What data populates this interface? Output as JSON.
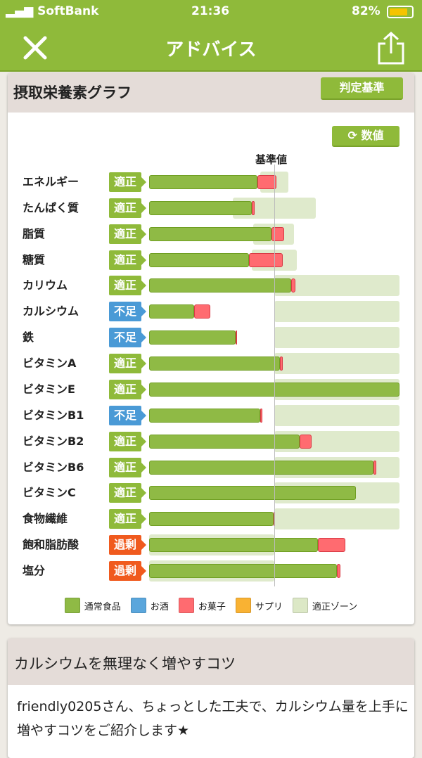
{
  "status_bar": {
    "carrier": "SoftBank",
    "time": "21:36",
    "battery": "82%"
  },
  "nav": {
    "title": "アドバイス",
    "close_icon": "close-icon",
    "share_icon": "share-icon"
  },
  "graph_card": {
    "title": "摂取栄養素グラフ",
    "judge_button": "判定基準",
    "values_button": "数値",
    "baseline_label": "基準値"
  },
  "chart_data": {
    "type": "bar",
    "orientation": "horizontal-stacked",
    "value_unit_note": "",
    "baseline": 100,
    "xlim": [
      0,
      200
    ],
    "categories": [
      "エネルギー",
      "たんぱく質",
      "脂質",
      "糖質",
      "カリウム",
      "カルシウム",
      "鉄",
      "ビタミンA",
      "ビタミンE",
      "ビタミンB1",
      "ビタミンB2",
      "ビタミンB6",
      "ビタミンC",
      "食物繊維",
      "飽和脂肪酸",
      "塩分"
    ],
    "status": [
      "適正",
      "適正",
      "適正",
      "適正",
      "適正",
      "不足",
      "不足",
      "適正",
      "適正",
      "不足",
      "適正",
      "適正",
      "適正",
      "適正",
      "過剰",
      "過剰"
    ],
    "status_colors": {
      "適正": "#8fba3a",
      "不足": "#4a9ad6",
      "過剰": "#f05a1e"
    },
    "series": [
      {
        "name": "通常食品",
        "color": "#8fba45",
        "values": [
          86.5,
          82,
          98,
          80,
          113.5,
          36,
          69,
          104.5,
          200,
          89,
          120,
          179,
          165,
          99.5,
          135,
          150
        ]
      },
      {
        "name": "お菓子",
        "color": "#ff6b70",
        "values": [
          15.2,
          2,
          10,
          27,
          3.5,
          13,
          1,
          2.5,
          0,
          1.5,
          10,
          2.5,
          0,
          0.5,
          22,
          3
        ]
      }
    ],
    "ideal_zone": {
      "name": "適正ゾーン",
      "color": "#dce8c6",
      "ranges": [
        [
          89,
          111
        ],
        [
          67,
          133
        ],
        [
          83,
          116
        ],
        [
          82,
          118
        ],
        [
          100,
          200
        ],
        [
          100,
          200
        ],
        [
          100,
          200
        ],
        [
          100,
          200
        ],
        [
          100,
          200
        ],
        [
          100,
          200
        ],
        [
          100,
          200
        ],
        [
          100,
          200
        ],
        [
          100,
          200
        ],
        [
          100,
          200
        ],
        [
          0,
          100
        ],
        [
          0,
          100
        ]
      ]
    },
    "legend": [
      {
        "label": "通常食品",
        "color": "#8fba45"
      },
      {
        "label": "お酒",
        "color": "#5aa6dc"
      },
      {
        "label": "お菓子",
        "color": "#ff6b70"
      },
      {
        "label": "サプリ",
        "color": "#f9b233"
      },
      {
        "label": "適正ゾーン",
        "color": "#dce8c6"
      }
    ]
  },
  "tip_card": {
    "title": "カルシウムを無理なく増やすコツ",
    "body": "friendly0205さん、ちょっとした工夫で、カルシウム量を上手に増やすコツをご紹介します★"
  }
}
